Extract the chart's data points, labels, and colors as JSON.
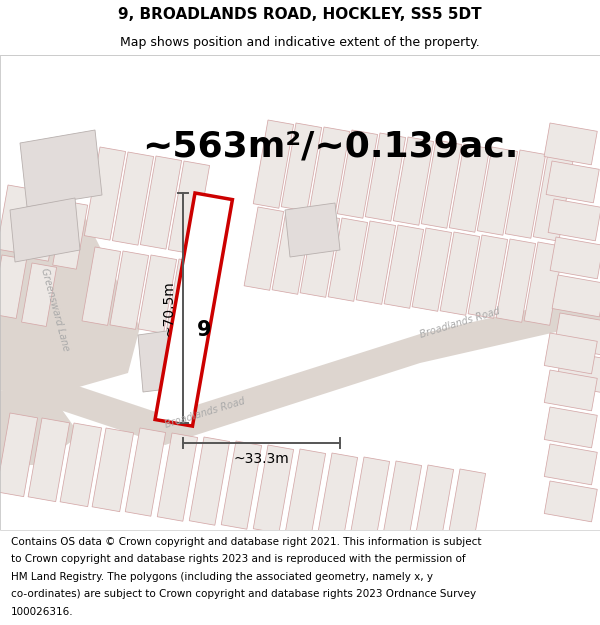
{
  "title": "9, BROADLANDS ROAD, HOCKLEY, SS5 5DT",
  "subtitle": "Map shows position and indicative extent of the property.",
  "area_text": "~563m²/~0.139ac.",
  "dim1_text": "~70.5m",
  "dim2_text": "~33.3m",
  "property_number": "9",
  "footer_lines": [
    "Contains OS data © Crown copyright and database right 2021. This information is subject",
    "to Crown copyright and database rights 2023 and is reproduced with the permission of",
    "HM Land Registry. The polygons (including the associated geometry, namely x, y",
    "co-ordinates) are subject to Crown copyright and database rights 2023 Ordnance Survey",
    "100026316."
  ],
  "bg_color": "#f0ebe8",
  "road_color": "#ddd5cf",
  "plot_fill": "#ede8e5",
  "plot_edge": "#d4a8a8",
  "highlight_edge": "#cc0000",
  "highlight_fill": "#ffffff",
  "dim_color": "#555555",
  "road_label_color": "#aaaaaa",
  "gray_label_color": "#888888",
  "title_fontsize": 11,
  "subtitle_fontsize": 9,
  "area_fontsize": 26,
  "dim_fontsize": 10,
  "number_fontsize": 15,
  "road_label_fontsize": 7,
  "footer_fontsize": 7.5
}
